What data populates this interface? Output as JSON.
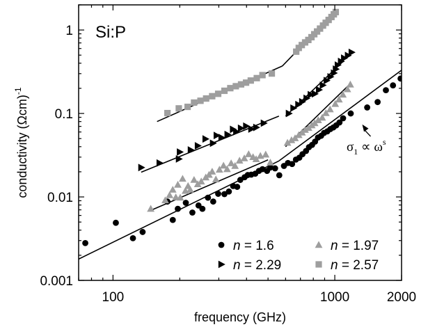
{
  "chart_data": {
    "type": "scatter",
    "title": "",
    "sample_label": "Si:P",
    "xlabel": "frequency (GHz)",
    "ylabel": "conductivity (Ωcm)",
    "ylabel_exp": "-1",
    "x_scale": "log",
    "y_scale": "log",
    "xlim": [
      70,
      2000
    ],
    "ylim": [
      0.001,
      2
    ],
    "x_ticks": [
      {
        "value": 100,
        "label": "100"
      },
      {
        "value": 1000,
        "label": "1000"
      },
      {
        "value": 2000,
        "label": "2000"
      }
    ],
    "y_ticks": [
      {
        "value": 0.001,
        "label": "0.001"
      },
      {
        "value": 0.01,
        "label": "0.01"
      },
      {
        "value": 0.1,
        "label": "0.1"
      },
      {
        "value": 1,
        "label": "1"
      }
    ],
    "grid": false,
    "legend_position": "bottom-right",
    "annotation": {
      "base": "σ",
      "sub": "1",
      "rest": " ∝ ω",
      "sup": "s",
      "points_to": {
        "x": 1330,
        "y": 0.086
      }
    },
    "series": [
      {
        "name": "n = 1.6",
        "legend_var": "n",
        "legend_rest": " = 1.6",
        "marker": "circle",
        "color": "#000000",
        "points": [
          [
            75,
            0.0028
          ],
          [
            103,
            0.0049
          ],
          [
            123,
            0.0032
          ],
          [
            136,
            0.0038
          ],
          [
            176,
            0.0088
          ],
          [
            186,
            0.0053
          ],
          [
            196,
            0.0072
          ],
          [
            213,
            0.0085
          ],
          [
            228,
            0.0065
          ],
          [
            243,
            0.0079
          ],
          [
            253,
            0.0072
          ],
          [
            268,
            0.0098
          ],
          [
            283,
            0.0088
          ],
          [
            298,
            0.0109
          ],
          [
            318,
            0.0108
          ],
          [
            333,
            0.0116
          ],
          [
            348,
            0.0135
          ],
          [
            363,
            0.0132
          ],
          [
            375,
            0.016
          ],
          [
            392,
            0.0172
          ],
          [
            405,
            0.0183
          ],
          [
            420,
            0.0185
          ],
          [
            438,
            0.019
          ],
          [
            455,
            0.0205
          ],
          [
            472,
            0.0215
          ],
          [
            495,
            0.0205
          ],
          [
            512,
            0.0225
          ],
          [
            538,
            0.022
          ],
          [
            562,
            0.0182
          ],
          [
            590,
            0.0235
          ],
          [
            615,
            0.0255
          ],
          [
            642,
            0.0248
          ],
          [
            668,
            0.028
          ],
          [
            692,
            0.0295
          ],
          [
            715,
            0.0325
          ],
          [
            742,
            0.0355
          ],
          [
            765,
            0.0395
          ],
          [
            790,
            0.042
          ],
          [
            815,
            0.046
          ],
          [
            840,
            0.0515
          ],
          [
            868,
            0.054
          ],
          [
            895,
            0.0585
          ],
          [
            925,
            0.061
          ],
          [
            955,
            0.065
          ],
          [
            985,
            0.068
          ],
          [
            1015,
            0.072
          ],
          [
            1050,
            0.078
          ],
          [
            1090,
            0.0875
          ],
          [
            1180,
            0.1
          ],
          [
            1400,
            0.118
          ],
          [
            1560,
            0.137
          ],
          [
            1700,
            0.19
          ],
          [
            1830,
            0.217
          ],
          [
            1980,
            0.262
          ]
        ]
      },
      {
        "name": "n = 1.97",
        "legend_var": "n",
        "legend_rest": " = 1.97",
        "marker": "triangle",
        "color": "#9e9e9e",
        "points": [
          [
            148,
            0.0072
          ],
          [
            172,
            0.0091
          ],
          [
            180,
            0.0105
          ],
          [
            186,
            0.0122
          ],
          [
            192,
            0.0099
          ],
          [
            196,
            0.014
          ],
          [
            201,
            0.0098
          ],
          [
            206,
            0.0165
          ],
          [
            212,
            0.0118
          ],
          [
            218,
            0.0135
          ],
          [
            223,
            0.0122
          ],
          [
            232,
            0.016
          ],
          [
            241,
            0.0142
          ],
          [
            250,
            0.0153
          ],
          [
            262,
            0.0171
          ],
          [
            271,
            0.0184
          ],
          [
            280,
            0.0201
          ],
          [
            291,
            0.0162
          ],
          [
            302,
            0.0212
          ],
          [
            315,
            0.0237
          ],
          [
            327,
            0.0215
          ],
          [
            341,
            0.0253
          ],
          [
            355,
            0.0235
          ],
          [
            372,
            0.0272
          ],
          [
            391,
            0.029
          ],
          [
            409,
            0.0325
          ],
          [
            428,
            0.03
          ],
          [
            442,
            0.0283
          ],
          [
            462,
            0.031
          ],
          [
            488,
            0.0322
          ],
          [
            512,
            0.0258
          ],
          [
            612,
            0.0445
          ],
          [
            638,
            0.0478
          ],
          [
            662,
            0.0505
          ],
          [
            688,
            0.055
          ],
          [
            712,
            0.059
          ],
          [
            735,
            0.0635
          ],
          [
            762,
            0.067
          ],
          [
            788,
            0.072
          ],
          [
            812,
            0.0765
          ],
          [
            842,
            0.083
          ],
          [
            878,
            0.089
          ],
          [
            912,
            0.101
          ],
          [
            952,
            0.112
          ],
          [
            1005,
            0.13
          ],
          [
            1045,
            0.147
          ],
          [
            1088,
            0.168
          ],
          [
            1140,
            0.195
          ],
          [
            1175,
            0.222
          ]
        ]
      },
      {
        "name": "n = 2.29",
        "legend_var": "n",
        "legend_rest": " = 2.29",
        "marker": "triangle-right",
        "color": "#000000",
        "points": [
          [
            134,
            0.0225
          ],
          [
            162,
            0.0255
          ],
          [
            198,
            0.0285
          ],
          [
            200,
            0.0345
          ],
          [
            224,
            0.0365
          ],
          [
            241,
            0.041
          ],
          [
            261,
            0.0495
          ],
          [
            282,
            0.044
          ],
          [
            293,
            0.0545
          ],
          [
            308,
            0.0515
          ],
          [
            328,
            0.056
          ],
          [
            347,
            0.0645
          ],
          [
            359,
            0.0605
          ],
          [
            377,
            0.0665
          ],
          [
            398,
            0.0705
          ],
          [
            420,
            0.065
          ],
          [
            442,
            0.068
          ],
          [
            478,
            0.0765
          ],
          [
            620,
            0.1
          ],
          [
            650,
            0.116
          ],
          [
            684,
            0.128
          ],
          [
            712,
            0.138
          ],
          [
            745,
            0.152
          ],
          [
            778,
            0.168
          ],
          [
            812,
            0.172
          ],
          [
            848,
            0.192
          ],
          [
            882,
            0.218
          ],
          [
            918,
            0.248
          ],
          [
            955,
            0.275
          ],
          [
            990,
            0.305
          ],
          [
            1010,
            0.34
          ],
          [
            1030,
            0.38
          ],
          [
            1065,
            0.42
          ],
          [
            1100,
            0.46
          ],
          [
            1145,
            0.495
          ],
          [
            1190,
            0.54
          ]
        ]
      },
      {
        "name": "n = 2.57",
        "legend_var": "n",
        "legend_rest": " = 2.57",
        "marker": "square",
        "color": "#9e9e9e",
        "points": [
          [
            176,
            0.101
          ],
          [
            198,
            0.115
          ],
          [
            217,
            0.12
          ],
          [
            232,
            0.135
          ],
          [
            248,
            0.142
          ],
          [
            263,
            0.151
          ],
          [
            280,
            0.161
          ],
          [
            298,
            0.172
          ],
          [
            318,
            0.187
          ],
          [
            338,
            0.201
          ],
          [
            358,
            0.212
          ],
          [
            378,
            0.223
          ],
          [
            398,
            0.234
          ],
          [
            418,
            0.248
          ],
          [
            445,
            0.265
          ],
          [
            472,
            0.288
          ],
          [
            520,
            0.301
          ],
          [
            670,
            0.55
          ],
          [
            688,
            0.61
          ],
          [
            710,
            0.66
          ],
          [
            735,
            0.71
          ],
          [
            760,
            0.76
          ],
          [
            785,
            0.82
          ],
          [
            808,
            0.89
          ],
          [
            832,
            0.96
          ],
          [
            858,
            1.04
          ],
          [
            885,
            1.13
          ],
          [
            910,
            1.22
          ],
          [
            938,
            1.32
          ],
          [
            966,
            1.43
          ],
          [
            990,
            1.54
          ],
          [
            1010,
            1.64
          ]
        ]
      }
    ],
    "fit_lines": [
      {
        "name": "n = 1.6",
        "color": "#000000",
        "segments": [
          [
            [
              70,
              0.0018
            ],
            [
              560,
              0.027
            ]
          ],
          [
            [
              560,
              0.027
            ],
            [
              2000,
              0.33
            ]
          ]
        ]
      },
      {
        "name": "n = 1.97",
        "color": "#000000",
        "segments": [
          [
            [
              148,
              0.0069
            ],
            [
              500,
              0.0278
            ]
          ],
          [
            [
              600,
              0.04
            ],
            [
              1180,
              0.23
            ]
          ]
        ]
      },
      {
        "name": "n = 2.29",
        "color": "#000000",
        "segments": [
          [
            [
              134,
              0.0198
            ],
            [
              560,
              0.093
            ]
          ],
          [
            [
              600,
              0.093
            ],
            [
              1100,
              0.43
            ]
          ]
        ]
      },
      {
        "name": "n = 2.57",
        "color": "#000000",
        "segments": [
          [
            [
              158,
              0.08
            ],
            [
              580,
              0.37
            ]
          ],
          [
            [
              580,
              0.37
            ],
            [
              1010,
              1.7
            ]
          ]
        ]
      }
    ]
  }
}
